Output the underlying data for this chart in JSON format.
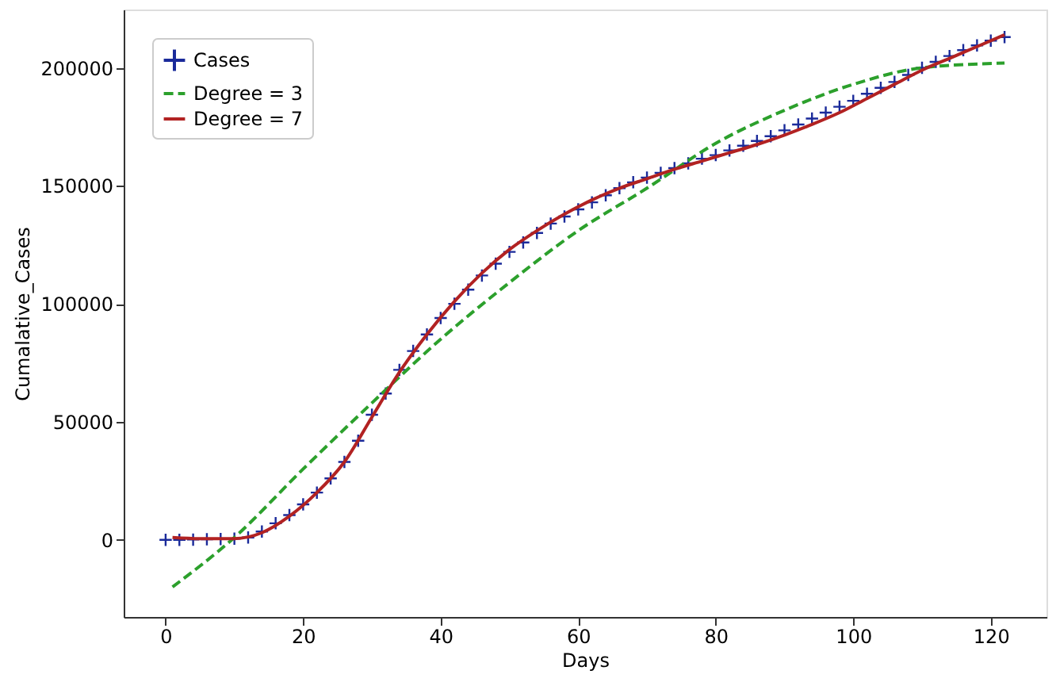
{
  "chart_data": {
    "type": "scatter",
    "xlabel": "Days",
    "ylabel": "Cumalative_Cases",
    "xlim": [
      -6.1,
      128.1
    ],
    "xticks": [
      0,
      20,
      40,
      60,
      80,
      100,
      120
    ],
    "ylim": [
      -32700,
      224700
    ],
    "yticks": [
      0,
      50000,
      100000,
      150000,
      200000
    ],
    "grid": false,
    "legend": "top left",
    "series": [
      {
        "name": "Cases",
        "marker": "cross",
        "color": "#1a2a9a",
        "x": [
          0,
          2,
          4,
          6,
          8,
          10,
          12,
          14,
          16,
          18,
          20,
          22,
          24,
          26,
          28,
          30,
          32,
          34,
          36,
          38,
          40,
          42,
          44,
          46,
          48,
          50,
          52,
          54,
          56,
          58,
          60,
          62,
          64,
          66,
          68,
          70,
          72,
          74,
          76,
          78,
          80,
          82,
          84,
          86,
          88,
          90,
          92,
          94,
          96,
          98,
          100,
          102,
          104,
          106,
          108,
          110,
          112,
          114,
          116,
          118,
          120,
          122
        ],
        "values": [
          0,
          0,
          100,
          200,
          300,
          500,
          1000,
          3500,
          7000,
          10500,
          15000,
          20000,
          26000,
          33000,
          42000,
          53000,
          62000,
          72000,
          80000,
          87000,
          94000,
          100000,
          106000,
          112000,
          117000,
          122000,
          126000,
          130000,
          134000,
          137000,
          140000,
          143000,
          146000,
          149000,
          151500,
          153500,
          155500,
          157500,
          159500,
          161500,
          163000,
          165000,
          167000,
          169000,
          171000,
          173500,
          176000,
          178500,
          181000,
          183500,
          186000,
          189000,
          191500,
          194000,
          197000,
          200000,
          202500,
          205000,
          207500,
          209500,
          211500,
          213000
        ]
      },
      {
        "name": "Degree = 3",
        "type": "line",
        "line_style": "dashed",
        "color": "#2ca02c",
        "x": [
          1,
          10,
          20,
          30,
          40,
          50,
          60,
          70,
          80,
          90,
          100,
          110,
          122
        ],
        "values": [
          -20000,
          1000,
          30000,
          58000,
          85000,
          109000,
          131000,
          149000,
          168000,
          182000,
          193000,
          200000,
          202000
        ]
      },
      {
        "name": "Degree = 7",
        "type": "line",
        "line_style": "solid",
        "color": "#b22222",
        "x": [
          1,
          5,
          10,
          14,
          18,
          22,
          26,
          30,
          34,
          38,
          42,
          46,
          50,
          54,
          58,
          62,
          66,
          70,
          74,
          78,
          82,
          86,
          90,
          94,
          98,
          102,
          106,
          110,
          114,
          118,
          122
        ],
        "values": [
          1000,
          500,
          500,
          3000,
          10000,
          20000,
          33000,
          52000,
          71000,
          87000,
          101000,
          113000,
          123000,
          131000,
          138000,
          144000,
          149000,
          153000,
          157000,
          160500,
          164000,
          167500,
          171500,
          176000,
          181000,
          187000,
          193000,
          199000,
          204000,
          209000,
          214000
        ]
      }
    ]
  }
}
